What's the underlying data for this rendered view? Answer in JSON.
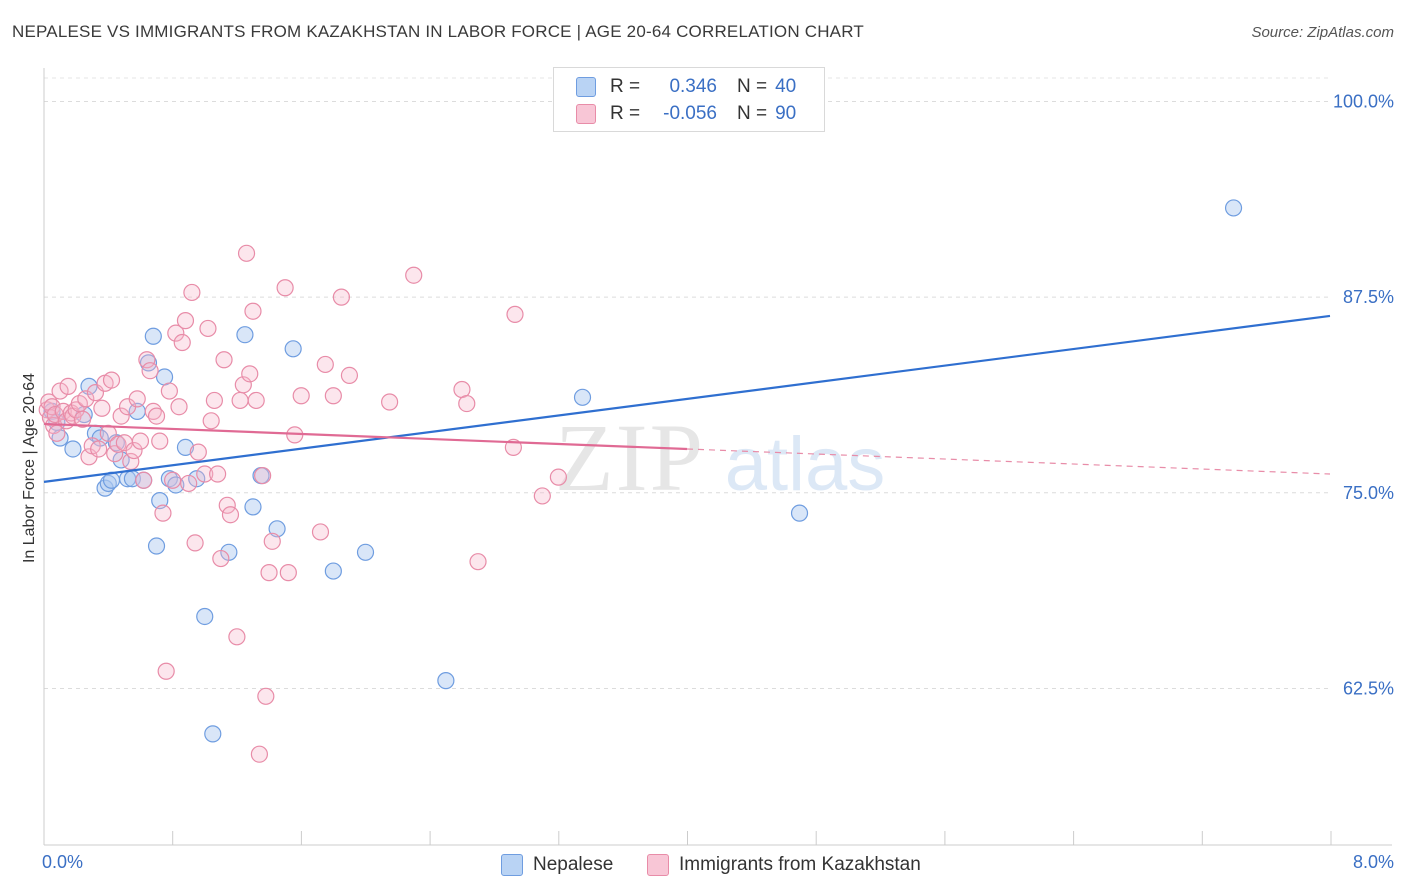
{
  "title": "NEPALESE VS IMMIGRANTS FROM KAZAKHSTAN IN LABOR FORCE | AGE 20-64 CORRELATION CHART",
  "source": "Source: ZipAtlas.com",
  "colors": {
    "blue": "#4a7fd4",
    "blue_fill": "#aac8f0",
    "pink": "#e8739c",
    "pink_fill": "#f5b8cc",
    "value_text": "#3a6fc4",
    "grid": "#dddddd"
  },
  "legend_top": [
    {
      "r_label": "R =",
      "r_value": "0.346",
      "n_label": "N =",
      "n_value": "40"
    },
    {
      "r_label": "R =",
      "r_value": "-0.056",
      "n_label": "N =",
      "n_value": "90"
    }
  ],
  "chart_data": {
    "type": "scatter",
    "title": "NEPALESE VS IMMIGRANTS FROM KAZAKHSTAN IN LABOR FORCE | AGE 20-64 CORRELATION CHART",
    "xlabel": "",
    "ylabel": "In Labor Force | Age 20-64",
    "xlim": [
      0,
      8
    ],
    "ylim": [
      52.5,
      101.5
    ],
    "x_tick_labels": [
      "0.0%",
      "8.0%"
    ],
    "y_ticks": [
      62.5,
      75.0,
      87.5,
      100.0
    ],
    "y_tick_labels": [
      "62.5%",
      "75.0%",
      "87.5%",
      "100.0%"
    ],
    "grid": true,
    "legend_position": "bottom",
    "series": [
      {
        "name": "Nepalese",
        "color": "#4a7fd4",
        "trend": {
          "x": [
            0,
            8
          ],
          "y": [
            75.7,
            86.3
          ],
          "dashed_from": null
        },
        "points": [
          [
            0.05,
            80.2
          ],
          [
            0.08,
            79.5
          ],
          [
            0.1,
            78.5
          ],
          [
            0.18,
            77.8
          ],
          [
            0.25,
            80.0
          ],
          [
            0.28,
            81.8
          ],
          [
            0.32,
            78.8
          ],
          [
            0.35,
            78.5
          ],
          [
            0.38,
            75.3
          ],
          [
            0.4,
            75.6
          ],
          [
            0.42,
            75.8
          ],
          [
            0.45,
            78.2
          ],
          [
            0.48,
            77.1
          ],
          [
            0.52,
            75.9
          ],
          [
            0.55,
            75.9
          ],
          [
            0.58,
            80.2
          ],
          [
            0.62,
            75.8
          ],
          [
            0.65,
            83.3
          ],
          [
            0.68,
            85.0
          ],
          [
            0.7,
            71.6
          ],
          [
            0.72,
            74.5
          ],
          [
            0.75,
            82.4
          ],
          [
            0.78,
            75.9
          ],
          [
            0.82,
            75.5
          ],
          [
            0.88,
            77.9
          ],
          [
            0.95,
            75.9
          ],
          [
            1.0,
            67.1
          ],
          [
            1.05,
            59.6
          ],
          [
            1.15,
            71.2
          ],
          [
            1.25,
            85.1
          ],
          [
            1.3,
            74.1
          ],
          [
            1.35,
            76.1
          ],
          [
            1.45,
            72.7
          ],
          [
            1.55,
            84.2
          ],
          [
            1.8,
            70.0
          ],
          [
            2.0,
            71.2
          ],
          [
            2.5,
            63.0
          ],
          [
            3.35,
            81.1
          ],
          [
            4.7,
            73.7
          ],
          [
            7.4,
            93.2
          ]
        ]
      },
      {
        "name": "Immigrants from Kazakhstan",
        "color": "#e8739c",
        "trend": {
          "x": [
            0,
            8
          ],
          "y": [
            79.4,
            76.2
          ],
          "solid_until": 4.0
        },
        "points": [
          [
            0.02,
            80.3
          ],
          [
            0.03,
            80.8
          ],
          [
            0.04,
            79.8
          ],
          [
            0.05,
            80.5
          ],
          [
            0.06,
            79.3
          ],
          [
            0.07,
            80.0
          ],
          [
            0.08,
            78.8
          ],
          [
            0.1,
            81.5
          ],
          [
            0.12,
            80.2
          ],
          [
            0.14,
            79.6
          ],
          [
            0.15,
            81.8
          ],
          [
            0.17,
            80.1
          ],
          [
            0.18,
            79.9
          ],
          [
            0.2,
            80.3
          ],
          [
            0.22,
            80.7
          ],
          [
            0.24,
            79.7
          ],
          [
            0.26,
            81.0
          ],
          [
            0.28,
            77.3
          ],
          [
            0.3,
            78.0
          ],
          [
            0.32,
            81.4
          ],
          [
            0.34,
            77.8
          ],
          [
            0.36,
            80.4
          ],
          [
            0.38,
            82.0
          ],
          [
            0.4,
            78.8
          ],
          [
            0.42,
            82.2
          ],
          [
            0.44,
            77.5
          ],
          [
            0.46,
            78.1
          ],
          [
            0.48,
            79.9
          ],
          [
            0.5,
            78.2
          ],
          [
            0.52,
            80.5
          ],
          [
            0.54,
            77.0
          ],
          [
            0.56,
            77.7
          ],
          [
            0.58,
            81.0
          ],
          [
            0.6,
            78.3
          ],
          [
            0.62,
            75.8
          ],
          [
            0.64,
            83.5
          ],
          [
            0.66,
            82.8
          ],
          [
            0.68,
            80.2
          ],
          [
            0.7,
            79.9
          ],
          [
            0.72,
            78.3
          ],
          [
            0.74,
            73.7
          ],
          [
            0.76,
            63.6
          ],
          [
            0.78,
            81.5
          ],
          [
            0.8,
            75.8
          ],
          [
            0.82,
            85.2
          ],
          [
            0.84,
            80.5
          ],
          [
            0.86,
            84.6
          ],
          [
            0.88,
            86.0
          ],
          [
            0.9,
            75.6
          ],
          [
            0.92,
            87.8
          ],
          [
            0.94,
            71.8
          ],
          [
            0.96,
            77.6
          ],
          [
            1.0,
            76.2
          ],
          [
            1.02,
            85.5
          ],
          [
            1.04,
            79.6
          ],
          [
            1.06,
            80.9
          ],
          [
            1.08,
            76.2
          ],
          [
            1.1,
            70.8
          ],
          [
            1.12,
            83.5
          ],
          [
            1.14,
            74.2
          ],
          [
            1.16,
            73.6
          ],
          [
            1.2,
            65.8
          ],
          [
            1.22,
            80.9
          ],
          [
            1.24,
            81.9
          ],
          [
            1.26,
            90.3
          ],
          [
            1.28,
            82.6
          ],
          [
            1.3,
            86.6
          ],
          [
            1.32,
            80.9
          ],
          [
            1.34,
            58.3
          ],
          [
            1.36,
            76.1
          ],
          [
            1.38,
            62.0
          ],
          [
            1.4,
            69.9
          ],
          [
            1.42,
            71.9
          ],
          [
            1.5,
            88.1
          ],
          [
            1.52,
            69.9
          ],
          [
            1.56,
            78.7
          ],
          [
            1.6,
            81.2
          ],
          [
            1.72,
            72.5
          ],
          [
            1.75,
            83.2
          ],
          [
            1.8,
            81.2
          ],
          [
            1.85,
            87.5
          ],
          [
            1.9,
            82.5
          ],
          [
            2.15,
            80.8
          ],
          [
            2.3,
            88.9
          ],
          [
            2.6,
            81.6
          ],
          [
            2.63,
            80.7
          ],
          [
            2.7,
            70.6
          ],
          [
            2.92,
            77.9
          ],
          [
            3.1,
            74.8
          ],
          [
            3.2,
            76.0
          ],
          [
            2.93,
            86.4
          ]
        ]
      }
    ]
  },
  "legend_bottom": [
    {
      "label": "Nepalese"
    },
    {
      "label": "Immigrants from Kazakhstan"
    }
  ],
  "watermark": {
    "zip": "ZIP",
    "atlas": "atlas"
  }
}
